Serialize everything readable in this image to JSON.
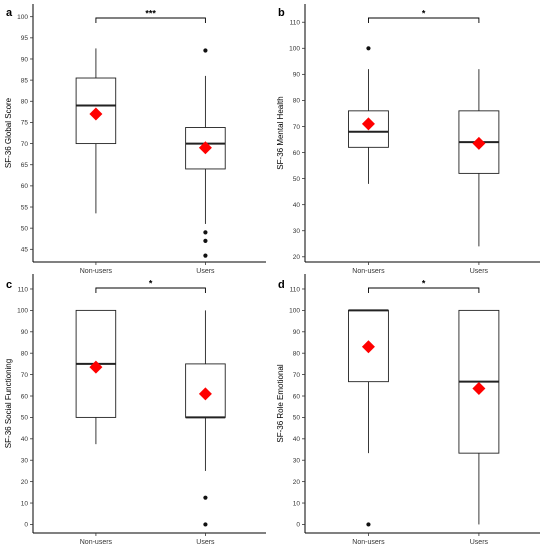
{
  "chart_data": [
    {
      "type": "box",
      "panel_label": "a",
      "ylabel": "SF-36 Global Score",
      "ylim": [
        42,
        103
      ],
      "yticks": [
        45,
        50,
        55,
        60,
        65,
        70,
        75,
        80,
        85,
        90,
        95,
        100
      ],
      "categories": [
        "Non-users",
        "Users"
      ],
      "boxes": [
        {
          "whisker_low": 53.5,
          "q1": 70,
          "median": 79,
          "q3": 85.5,
          "whisker_high": 92.5,
          "mean": 77,
          "outliers": []
        },
        {
          "whisker_low": 51,
          "q1": 64,
          "median": 70,
          "q3": 73.8,
          "whisker_high": 86,
          "mean": 69,
          "outliers": [
            92,
            49,
            47,
            43.5
          ]
        }
      ],
      "significance": "***",
      "grid": false
    },
    {
      "type": "box",
      "panel_label": "b",
      "ylabel": "SF-36 Mental Health",
      "ylim": [
        18,
        117
      ],
      "yticks": [
        20,
        30,
        40,
        50,
        60,
        70,
        80,
        90,
        100,
        110
      ],
      "categories": [
        "Non-users",
        "Users"
      ],
      "boxes": [
        {
          "whisker_low": 48,
          "q1": 62,
          "median": 68,
          "q3": 76,
          "whisker_high": 92,
          "mean": 71,
          "outliers": [
            100
          ]
        },
        {
          "whisker_low": 24,
          "q1": 52,
          "median": 64,
          "q3": 76,
          "whisker_high": 92,
          "mean": 63.5,
          "outliers": []
        }
      ],
      "significance": "*",
      "grid": false
    },
    {
      "type": "box",
      "panel_label": "c",
      "ylabel": "SF-36 Social Functioning",
      "ylim": [
        -4,
        117
      ],
      "yticks": [
        0,
        10,
        20,
        30,
        40,
        50,
        60,
        70,
        80,
        90,
        100,
        110
      ],
      "categories": [
        "Non-users",
        "Users"
      ],
      "boxes": [
        {
          "whisker_low": 37.5,
          "q1": 50,
          "median": 75,
          "q3": 100,
          "whisker_high": 100,
          "mean": 73.5,
          "outliers": []
        },
        {
          "whisker_low": 25,
          "q1": 50,
          "median": 50,
          "q3": 75,
          "whisker_high": 100,
          "mean": 61,
          "outliers": [
            12.5,
            0
          ]
        }
      ],
      "significance": "*",
      "grid": false
    },
    {
      "type": "box",
      "panel_label": "d",
      "ylabel": "SF-36 Role Emotional",
      "ylim": [
        -4,
        117
      ],
      "yticks": [
        0,
        10,
        20,
        30,
        40,
        50,
        60,
        70,
        80,
        90,
        100,
        110
      ],
      "categories": [
        "Non-users",
        "Users"
      ],
      "boxes": [
        {
          "whisker_low": 33.3,
          "q1": 66.7,
          "median": 100,
          "q3": 100,
          "whisker_high": 100,
          "mean": 83,
          "outliers": [
            0
          ]
        },
        {
          "whisker_low": 0,
          "q1": 33.3,
          "median": 66.7,
          "q3": 100,
          "whisker_high": 100,
          "mean": 63.5,
          "outliers": []
        }
      ],
      "significance": "*",
      "grid": false
    }
  ],
  "colors": {
    "mean_marker": "#ff0000",
    "box_stroke": "#222222",
    "axis": "#000000"
  }
}
